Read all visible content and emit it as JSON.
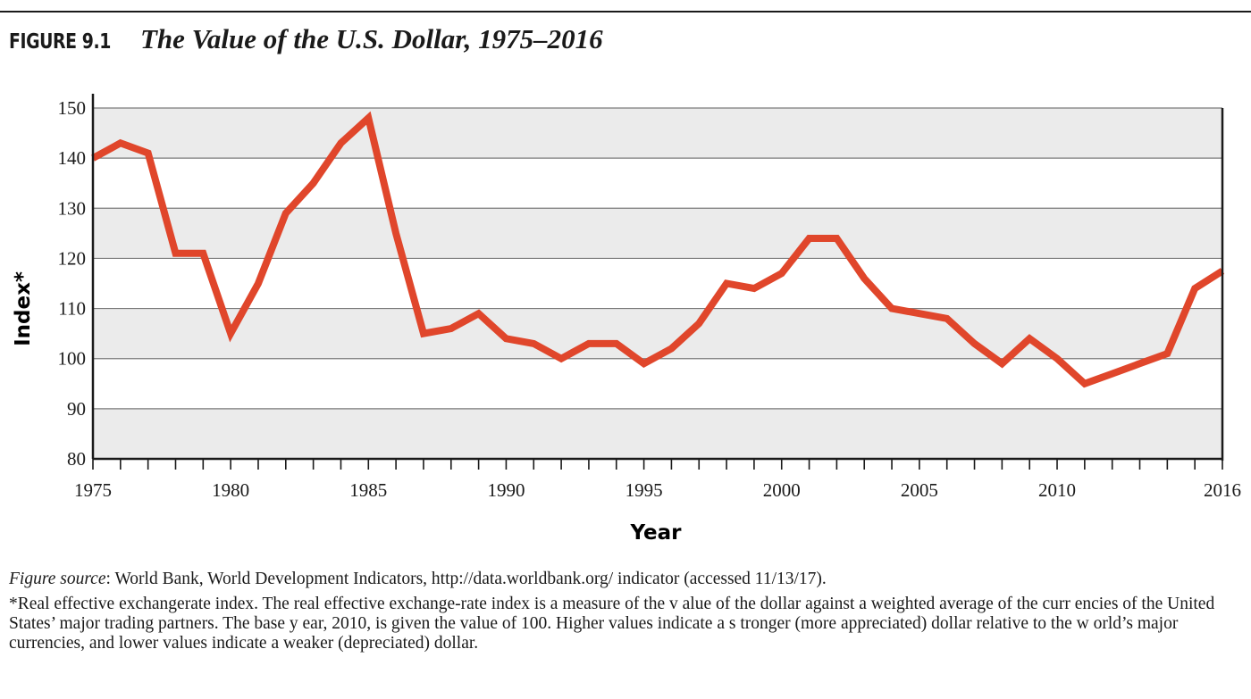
{
  "figure": {
    "label": "FIGURE 9.1",
    "title": "The Value of the U.S. Dollar, 1975–2016"
  },
  "footer": {
    "source_label": "Figure source",
    "source_text": ": World Bank, World Development Indicators, http://data.worldbank.org/ indicator (accessed 11/13/17).",
    "note": "*Real effective exchangerate index. The real effective exchange-rate index is a measure of the v alue of the dollar against a weighted average of the curr encies of the United States’ major trading partners. The base y ear, 2010, is given the value of 100. Higher values indicate a s tronger (more appreciated) dollar relative to the w orld’s major currencies, and lower values indicate a weaker (depreciated) dollar."
  },
  "colors": {
    "line": "#e0462b",
    "band": "#ebebeb",
    "grid": "#7a7a7a",
    "axis": "#1a1a1a"
  },
  "chart_data": {
    "type": "line",
    "title": "The Value of the U.S. Dollar, 1975–2016",
    "xlabel": "Year",
    "ylabel": "Index*",
    "xlim": [
      1975,
      2016
    ],
    "ylim": [
      80,
      150
    ],
    "x_ticks": [
      1975,
      1980,
      1985,
      1990,
      1995,
      2000,
      2005,
      2010,
      2016
    ],
    "y_ticks": [
      80,
      90,
      100,
      110,
      120,
      130,
      140,
      150
    ],
    "grid": true,
    "legend": "none",
    "x": [
      1975,
      1976,
      1977,
      1978,
      1979,
      1980,
      1981,
      1982,
      1983,
      1984,
      1985,
      1986,
      1987,
      1988,
      1989,
      1990,
      1991,
      1992,
      1993,
      1994,
      1995,
      1996,
      1997,
      1998,
      1999,
      2000,
      2001,
      2002,
      2003,
      2004,
      2005,
      2006,
      2007,
      2008,
      2009,
      2010,
      2011,
      2012,
      2013,
      2014,
      2015,
      2016
    ],
    "y": [
      140,
      143,
      141,
      121,
      121,
      105,
      115,
      129,
      135,
      143,
      148,
      125,
      105,
      106,
      109,
      104,
      103,
      100,
      103,
      103,
      99,
      102,
      107,
      115,
      114,
      117,
      124,
      124,
      116,
      110,
      109,
      108,
      103,
      99,
      104,
      100,
      95,
      97,
      99,
      101,
      114,
      117.5
    ]
  }
}
